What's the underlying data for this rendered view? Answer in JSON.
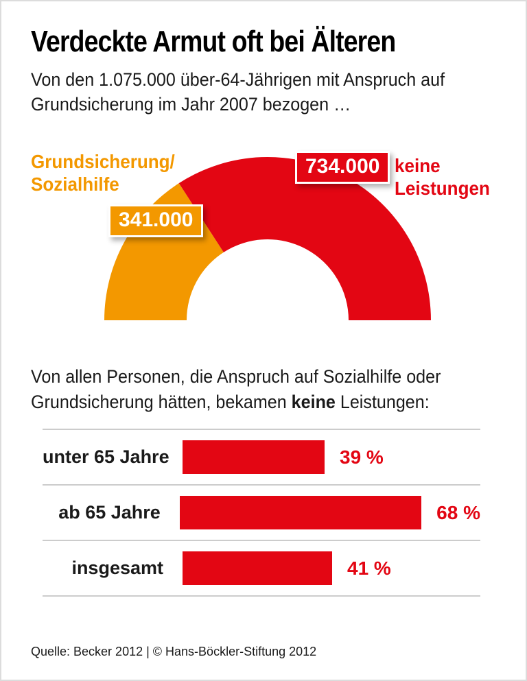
{
  "page": {
    "title": "Verdeckte Armut oft bei Älteren",
    "subtitle_line1": "Von den 1.075.000 über-64-Jährigen mit Anspruch auf",
    "subtitle_line2": "Grundsicherung im Jahr 2007 bezogen …",
    "midtext_line1": "Von allen Personen, die Anspruch auf Sozialhilfe oder",
    "midtext_line2_prefix": "Grundsicherung hätten, bekamen ",
    "midtext_line2_bold": "keine",
    "midtext_line2_suffix": " Leistungen:",
    "source": "Quelle: Becker 2012 | © Hans-Böckler-Stiftung 2012"
  },
  "colors": {
    "red": "#E30613",
    "orange": "#F39800",
    "text": "#1A1A1A",
    "separator": "#CCCCCC",
    "frame": "#DCDCDC",
    "background": "#FFFFFF"
  },
  "donut_labels": {
    "left_line1": "Grundsicherung/",
    "left_line2": "Sozialhilfe",
    "right_line1": "keine",
    "right_line2": "Leistungen"
  },
  "chart_data": [
    {
      "type": "pie",
      "subtype": "half-donut",
      "title": "Von den 1.075.000 über-64-Jährigen mit Anspruch auf Grundsicherung im Jahr 2007 bezogen …",
      "total": 1075000,
      "total_display": "1.075.000",
      "slices": [
        {
          "label": "Grundsicherung/Sozialhilfe",
          "value": 341000,
          "display": "341.000",
          "color": "#F39800"
        },
        {
          "label": "keine Leistungen",
          "value": 734000,
          "display": "734.000",
          "color": "#E30613"
        }
      ],
      "legend_position": "sides",
      "start_side": "left"
    },
    {
      "type": "bar",
      "orientation": "horizontal",
      "title": "Von allen Personen, die Anspruch auf Sozialhilfe oder Grundsicherung hätten, bekamen keine Leistungen:",
      "categories": [
        "unter 65 Jahre",
        "ab 65 Jahre",
        "insgesamt"
      ],
      "values": [
        39,
        68,
        41
      ],
      "value_labels": [
        "39 %",
        "68 %",
        "41 %"
      ],
      "xlim": [
        0,
        100
      ],
      "bar_color": "#E30613",
      "grid": false,
      "legend_position": "none"
    }
  ]
}
